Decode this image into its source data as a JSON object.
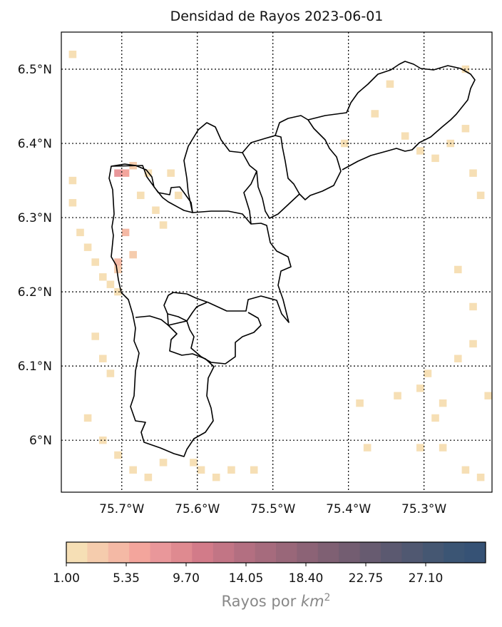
{
  "chart_data": {
    "type": "heatmap",
    "title": "Densidad de Rayos 2023-06-01",
    "xlim": [
      -75.78,
      -75.21
    ],
    "ylim": [
      5.93,
      6.55
    ],
    "x_ticks": [
      -75.7,
      -75.6,
      -75.5,
      -75.4,
      -75.3
    ],
    "x_tick_labels": [
      "75.7°W",
      "75.6°W",
      "75.5°W",
      "75.4°W",
      "75.3°W"
    ],
    "y_ticks": [
      6.0,
      6.1,
      6.2,
      6.3,
      6.4,
      6.5
    ],
    "y_tick_labels": [
      "6°N",
      "6.1°N",
      "6.2°N",
      "6.3°N",
      "6.4°N",
      "6.5°N"
    ],
    "grid": "dotted",
    "colorbar": {
      "label_text": "Rayos por ",
      "label_unit": "km",
      "label_power": "2",
      "ticks": [
        "1.00",
        "5.35",
        "9.70",
        "14.05",
        "18.40",
        "22.75",
        "27.10"
      ],
      "vmin": 1.0,
      "vmax": 31.45,
      "colors": [
        "#f6dfb5",
        "#f5ccad",
        "#f4b9a5",
        "#f3a59c",
        "#e9979a",
        "#df8a90",
        "#d27b89",
        "#c27585",
        "#b36f81",
        "#a66b7d",
        "#996779",
        "#8c6376",
        "#7f6073",
        "#735d71",
        "#675b70",
        "#5b5970",
        "#505871",
        "#455772",
        "#3b5574",
        "#365275"
      ]
    },
    "cells_note": "lat/lon cell centers with lightning density values",
    "cells": [
      [
        -75.765,
        6.52,
        1.5
      ],
      [
        -75.765,
        6.35,
        1.2
      ],
      [
        -75.765,
        6.32,
        1.4
      ],
      [
        -75.755,
        6.28,
        1.6
      ],
      [
        -75.745,
        6.26,
        1.3
      ],
      [
        -75.735,
        6.24,
        1.5
      ],
      [
        -75.725,
        6.22,
        1.8
      ],
      [
        -75.715,
        6.21,
        2.4
      ],
      [
        -75.705,
        6.2,
        1.9
      ],
      [
        -75.705,
        6.23,
        3.1
      ],
      [
        -75.705,
        6.24,
        4.2
      ],
      [
        -75.705,
        6.36,
        7.1
      ],
      [
        -75.695,
        6.36,
        6.8
      ],
      [
        -75.695,
        6.28,
        4.8
      ],
      [
        -75.685,
        6.37,
        2.6
      ],
      [
        -75.685,
        6.25,
        3.3
      ],
      [
        -75.675,
        6.33,
        1.9
      ],
      [
        -75.665,
        6.36,
        1.6
      ],
      [
        -75.655,
        6.31,
        1.7
      ],
      [
        -75.645,
        6.29,
        1.4
      ],
      [
        -75.635,
        6.36,
        1.2
      ],
      [
        -75.625,
        6.33,
        1.5
      ],
      [
        -75.735,
        6.14,
        1.3
      ],
      [
        -75.725,
        6.11,
        1.6
      ],
      [
        -75.715,
        6.09,
        1.4
      ],
      [
        -75.745,
        6.03,
        1.5
      ],
      [
        -75.725,
        6.0,
        1.2
      ],
      [
        -75.705,
        5.98,
        1.8
      ],
      [
        -75.685,
        5.96,
        1.4
      ],
      [
        -75.665,
        5.95,
        1.7
      ],
      [
        -75.645,
        5.97,
        1.5
      ],
      [
        -75.605,
        5.97,
        2.3
      ],
      [
        -75.595,
        5.96,
        1.9
      ],
      [
        -75.575,
        5.95,
        1.6
      ],
      [
        -75.555,
        5.96,
        1.4
      ],
      [
        -75.525,
        5.96,
        1.2
      ],
      [
        -75.385,
        6.05,
        1.3
      ],
      [
        -75.375,
        5.99,
        1.2
      ],
      [
        -75.335,
        6.06,
        1.4
      ],
      [
        -75.305,
        6.07,
        1.5
      ],
      [
        -75.295,
        6.09,
        1.3
      ],
      [
        -75.285,
        6.03,
        1.2
      ],
      [
        -75.275,
        6.05,
        1.6
      ],
      [
        -75.255,
        6.11,
        1.4
      ],
      [
        -75.235,
        6.13,
        1.3
      ],
      [
        -75.215,
        6.06,
        1.2
      ],
      [
        -75.405,
        6.4,
        1.3
      ],
      [
        -75.365,
        6.44,
        1.4
      ],
      [
        -75.345,
        6.48,
        1.2
      ],
      [
        -75.325,
        6.41,
        1.5
      ],
      [
        -75.305,
        6.39,
        1.6
      ],
      [
        -75.285,
        6.38,
        1.4
      ],
      [
        -75.265,
        6.4,
        1.5
      ],
      [
        -75.245,
        6.42,
        1.3
      ],
      [
        -75.235,
        6.36,
        2.1
      ],
      [
        -75.225,
        6.33,
        1.6
      ],
      [
        -75.245,
        6.5,
        1.4
      ],
      [
        -75.235,
        6.18,
        1.3
      ],
      [
        -75.255,
        6.23,
        1.2
      ],
      [
        -75.305,
        5.99,
        1.3
      ],
      [
        -75.275,
        5.99,
        1.4
      ],
      [
        -75.245,
        5.96,
        1.6
      ],
      [
        -75.225,
        5.95,
        1.3
      ]
    ]
  }
}
